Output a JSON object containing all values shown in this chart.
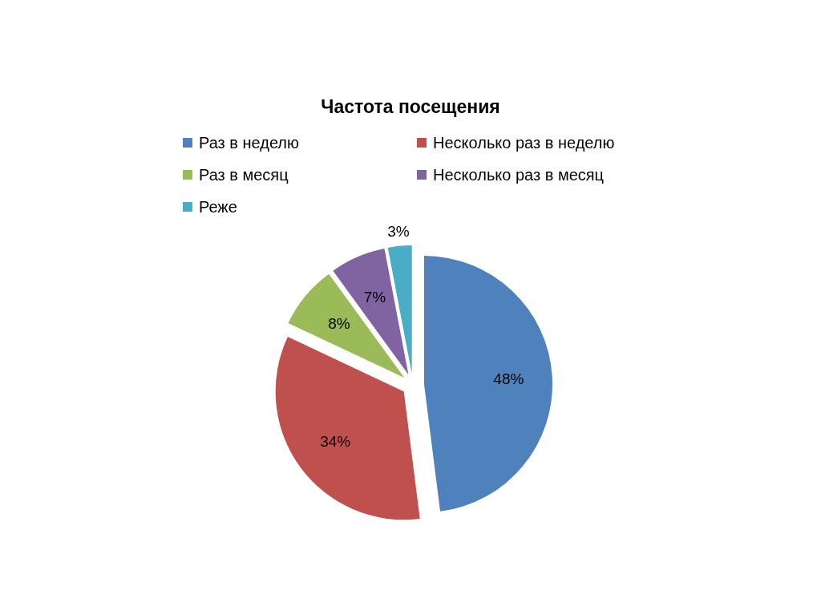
{
  "chart_data": {
    "type": "pie",
    "title": "Частота посещения",
    "categories": [
      "Раз в неделю",
      "Несколько раз в неделю",
      "Раз в месяц",
      "Несколько раз в месяц",
      "Реже"
    ],
    "values": [
      48,
      34,
      8,
      7,
      3
    ],
    "colors": [
      "#4f81bd",
      "#c0504d",
      "#9bbb59",
      "#8064a2",
      "#4bacc6"
    ],
    "value_labels": [
      "48%",
      "34%",
      "8%",
      "7%",
      "3%"
    ],
    "legend": "top"
  }
}
